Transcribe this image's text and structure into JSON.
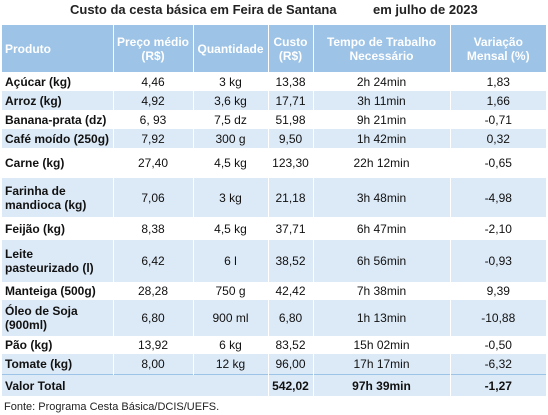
{
  "header": {
    "title": "Custo da cesta básica em Feira de Santana",
    "period": "em julho de 2023"
  },
  "table": {
    "columns": [
      [
        "Produto"
      ],
      [
        "Preço médio",
        "(R$)"
      ],
      [
        "Quantidade"
      ],
      [
        "Custo",
        "(R$)"
      ],
      [
        "Tempo de Trabalho",
        "Necessário"
      ],
      [
        "Variação",
        "Mensal (%)"
      ]
    ],
    "rows": [
      [
        [
          "Açúcar (kg)"
        ],
        "4,46",
        "3 kg",
        "13,38",
        "2h 24min",
        "1,83"
      ],
      [
        [
          "Arroz (kg)"
        ],
        "4,92",
        "3,6 kg",
        "17,71",
        "3h 11min",
        "1,66"
      ],
      [
        [
          "Banana-prata (dz)"
        ],
        "6, 93",
        "7,5 dz",
        "51,98",
        "9h 21min",
        "-0,71"
      ],
      [
        [
          "Café moído (250g)"
        ],
        "7,92",
        "300 g",
        "9,50",
        "1h 42min",
        "0,32"
      ],
      [
        [
          "Carne (kg)"
        ],
        "27,40",
        "4,5 kg",
        "123,30",
        "22h 12min",
        "-0,65"
      ],
      [
        [
          "Farinha de",
          "mandioca (kg)"
        ],
        "7,06",
        "3 kg",
        "21,18",
        "3h 48min",
        "-4,98"
      ],
      [
        [
          "Feijão (kg)"
        ],
        "8,38",
        "4,5 kg",
        "37,71",
        "6h 47min",
        "-2,10"
      ],
      [
        [
          "Leite",
          "pasteurizado (l)"
        ],
        "6,42",
        "6 l",
        "38,52",
        "6h 56min",
        "-0,93"
      ],
      [
        [
          "Manteiga (500g)"
        ],
        "28,28",
        "750 g",
        "42,42",
        "7h 38min",
        "9,39"
      ],
      [
        [
          "Óleo de Soja",
          "(900ml)"
        ],
        "6,80",
        "900 ml",
        "6,80",
        "1h 13min",
        "-10,88"
      ],
      [
        [
          "Pão (kg)"
        ],
        "13,92",
        "6 kg",
        "83,52",
        "15h 02min",
        "-0,50"
      ],
      [
        [
          "Tomate (kg)"
        ],
        "8,00",
        "12 kg",
        "96,00",
        "17h 17min",
        "-6,32"
      ]
    ],
    "total": [
      "Valor Total",
      "542,02",
      "97h 39min",
      "-1,27"
    ]
  },
  "footer": {
    "source": "Fonte: Programa Cesta Básica/DCIS/UEFS."
  }
}
